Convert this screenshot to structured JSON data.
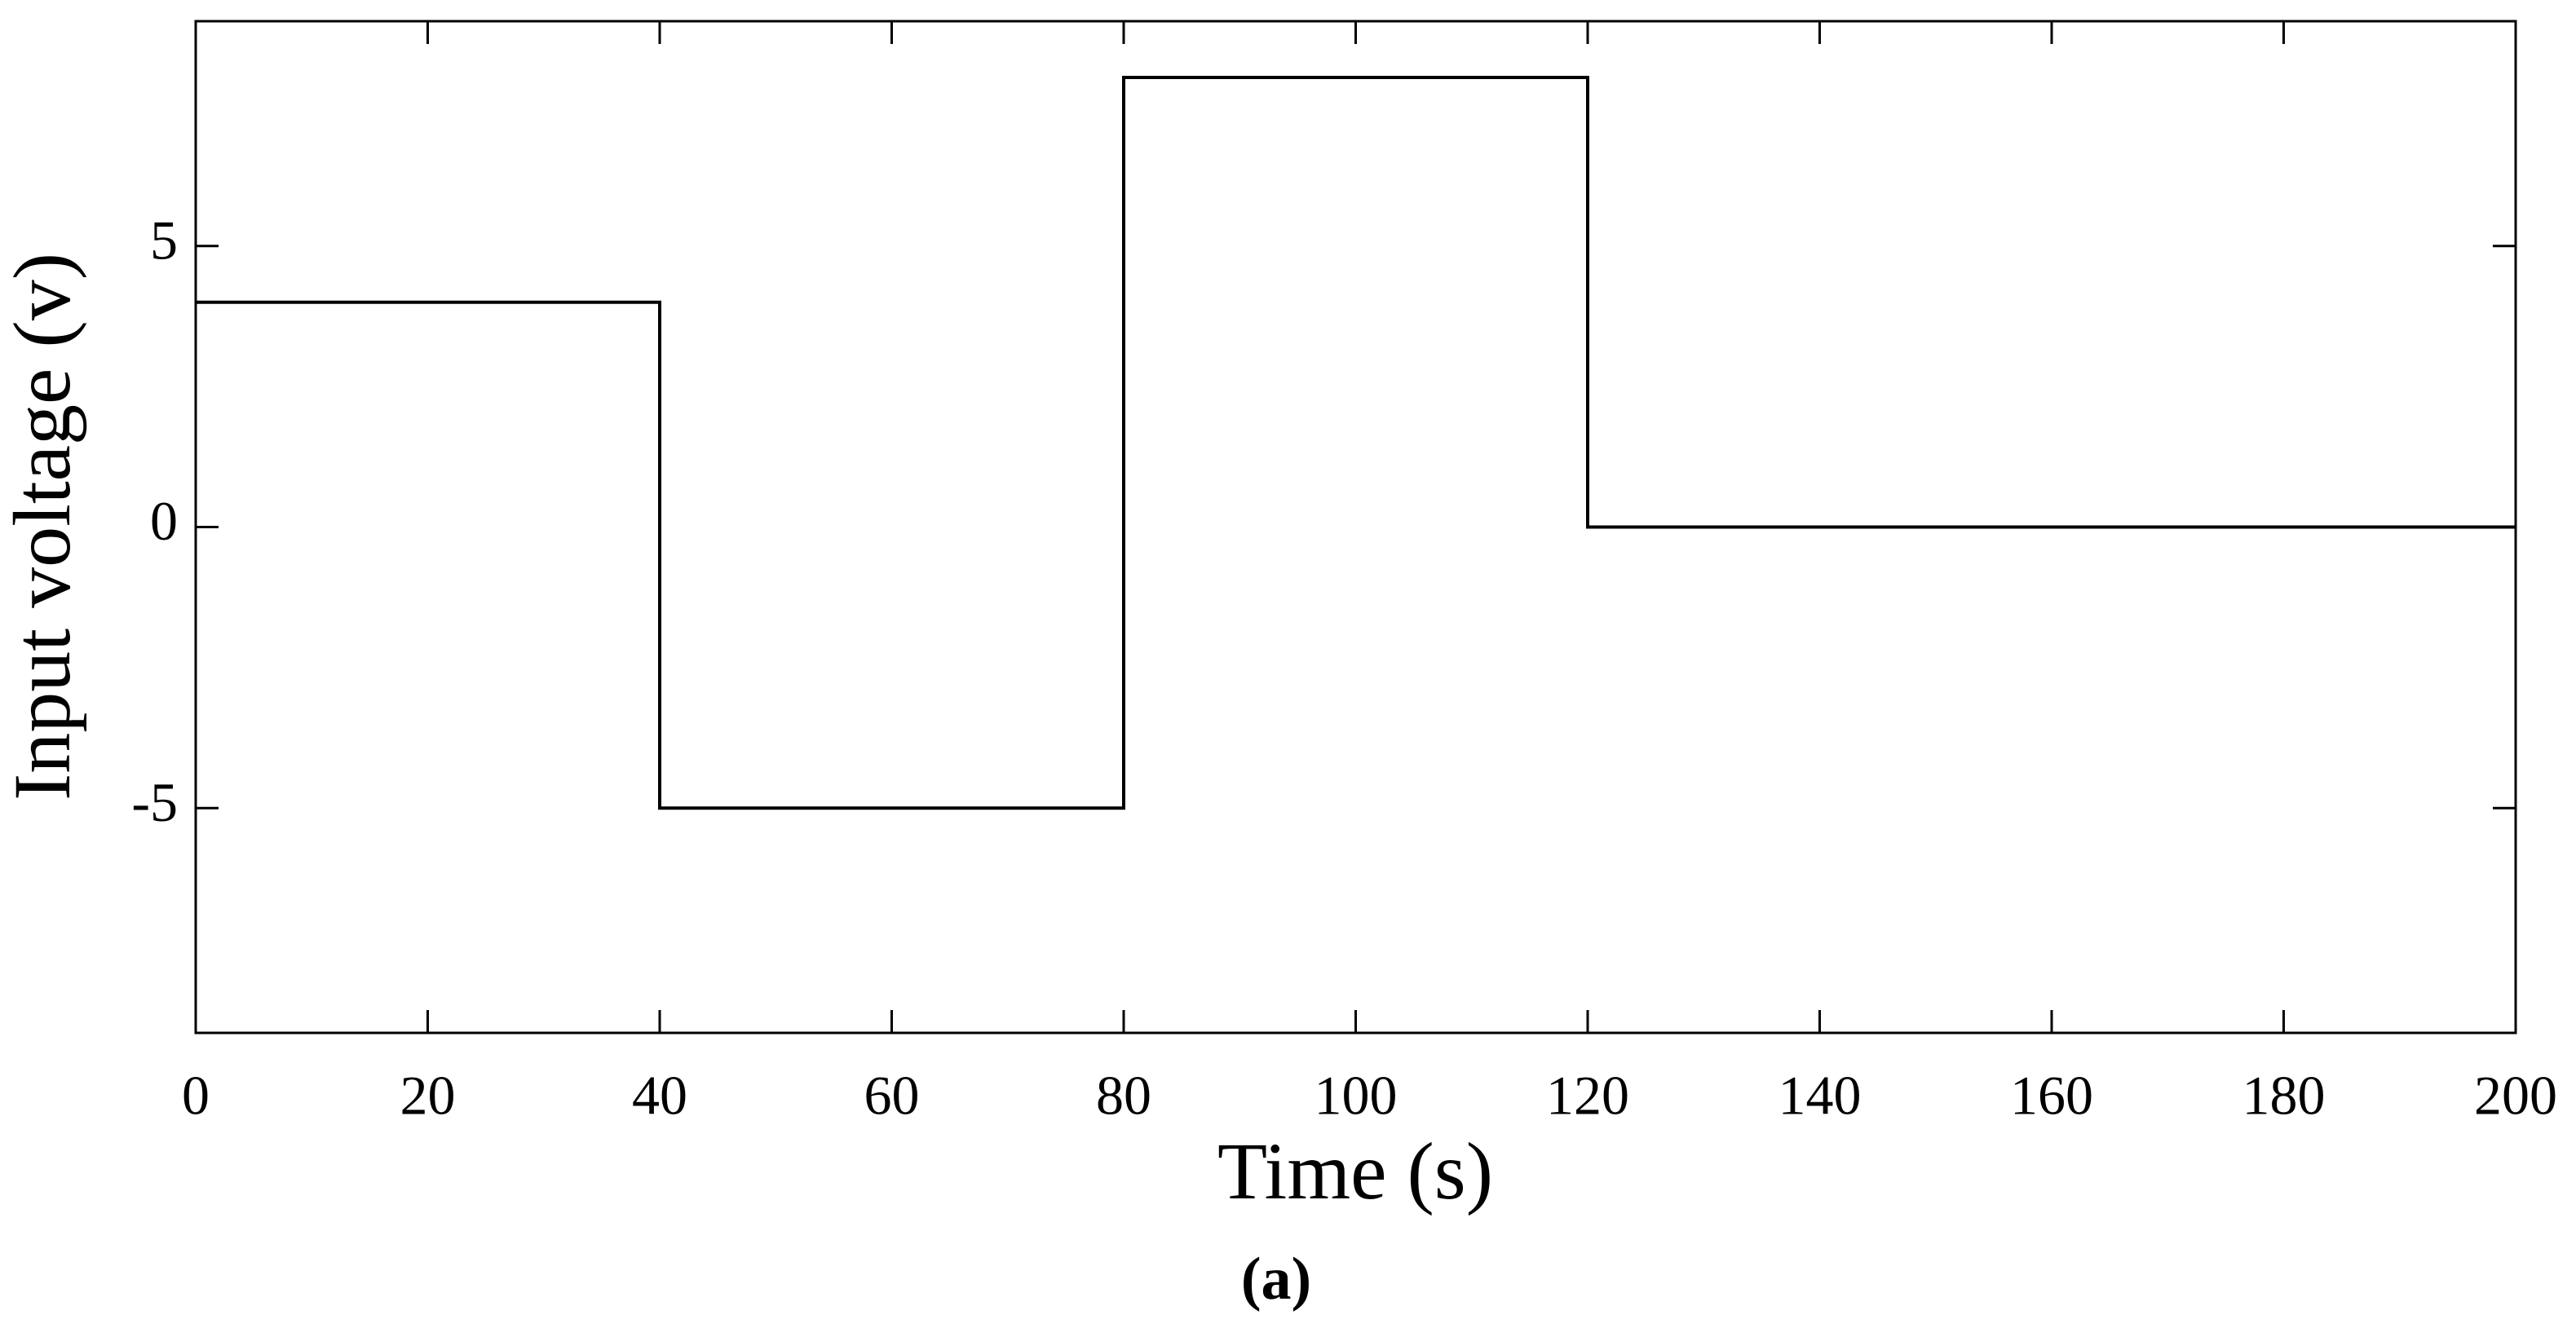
{
  "chart_data": {
    "type": "line",
    "x_label": "Time (s)",
    "y_label": "Input voltage (v)",
    "caption": "(a)",
    "x": [
      0,
      40,
      40,
      80,
      80,
      120,
      120,
      200
    ],
    "values": [
      4,
      4,
      -5,
      -5,
      8,
      8,
      0,
      0
    ],
    "color": "#000000",
    "xlim": [
      0,
      200
    ],
    "xticks": [
      0,
      20,
      40,
      60,
      80,
      100,
      120,
      140,
      160,
      180,
      200
    ],
    "ylim": [
      -9,
      9
    ],
    "yticks": [
      -5,
      0,
      5
    ],
    "grid": false
  }
}
